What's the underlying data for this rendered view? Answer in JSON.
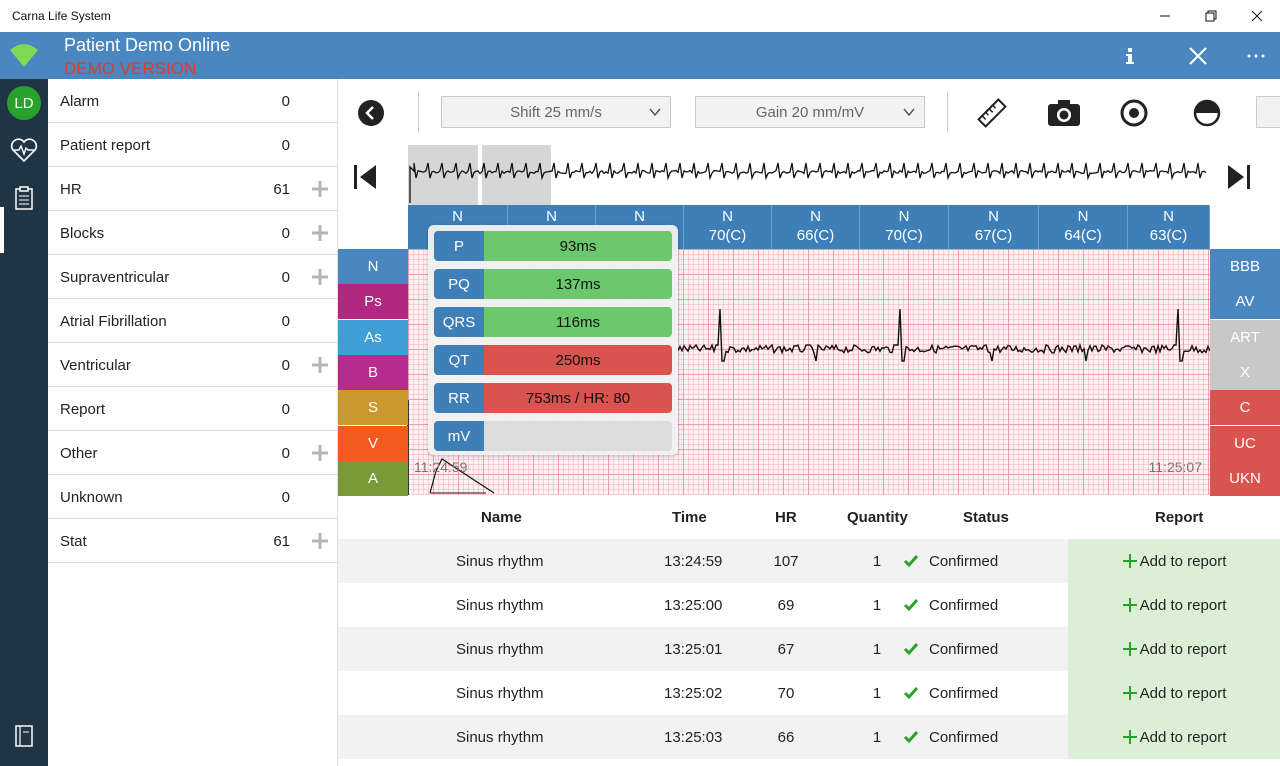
{
  "window": {
    "title": "Carna Life System"
  },
  "header": {
    "patient_name": "Patient Demo Online",
    "demo_label": "DEMO VERSION"
  },
  "rail": {
    "avatar_initials": "LD"
  },
  "categories": [
    {
      "label": "Alarm",
      "count": "0",
      "has_plus": false
    },
    {
      "label": "Patient report",
      "count": "0",
      "has_plus": false
    },
    {
      "label": "HR",
      "count": "61",
      "has_plus": true
    },
    {
      "label": "Blocks",
      "count": "0",
      "has_plus": true
    },
    {
      "label": "Supraventricular",
      "count": "0",
      "has_plus": true
    },
    {
      "label": "Atrial Fibrillation",
      "count": "0",
      "has_plus": false
    },
    {
      "label": "Ventricular",
      "count": "0",
      "has_plus": true
    },
    {
      "label": "Report",
      "count": "0",
      "has_plus": false
    },
    {
      "label": "Other",
      "count": "0",
      "has_plus": true
    },
    {
      "label": "Unknown",
      "count": "0",
      "has_plus": false
    },
    {
      "label": "Stat",
      "count": "61",
      "has_plus": true
    }
  ],
  "toolbar": {
    "shift_select": "Shift 25  mm/s",
    "gain_select": "Gain 20  mm/mV"
  },
  "beats": [
    {
      "type": "N",
      "value": ""
    },
    {
      "type": "N",
      "value": ""
    },
    {
      "type": "N",
      "value": ""
    },
    {
      "type": "N",
      "value": "70(C)"
    },
    {
      "type": "N",
      "value": "66(C)"
    },
    {
      "type": "N",
      "value": "70(C)"
    },
    {
      "type": "N",
      "value": "67(C)"
    },
    {
      "type": "N",
      "value": "64(C)"
    },
    {
      "type": "N",
      "value": "63(C)"
    }
  ],
  "left_tags": [
    {
      "label": "N",
      "color": "#4a86c0"
    },
    {
      "label": "Ps",
      "color": "#b0287f"
    },
    {
      "label": "As",
      "color": "#3d9fd6"
    },
    {
      "label": "B",
      "color": "#b72a8e"
    },
    {
      "label": "S",
      "color": "#c9992e"
    },
    {
      "label": "V",
      "color": "#f25a1e"
    },
    {
      "label": "A",
      "color": "#7a9a3a"
    }
  ],
  "right_tags": [
    {
      "label": "BBB",
      "color": "#4a86c0"
    },
    {
      "label": "AV",
      "color": "#4a86c0"
    },
    {
      "label": "ART",
      "color": "#c8c8c8"
    },
    {
      "label": "X",
      "color": "#c8c8c8"
    },
    {
      "label": "C",
      "color": "#d9534f"
    },
    {
      "label": "UC",
      "color": "#d9534f"
    },
    {
      "label": "UKN",
      "color": "#d9534f"
    }
  ],
  "ecg": {
    "start_time": "11:24:59",
    "end_time": "11:25:07"
  },
  "measurements": [
    {
      "key": "P",
      "value": "93ms",
      "color": "#6cc86c"
    },
    {
      "key": "PQ",
      "value": "137ms",
      "color": "#6cc86c"
    },
    {
      "key": "QRS",
      "value": "116ms",
      "color": "#6cc86c"
    },
    {
      "key": "QT",
      "value": "250ms",
      "color": "#d9534f"
    },
    {
      "key": "RR",
      "value": "753ms / HR: 80",
      "color": "#d9534f"
    },
    {
      "key": "mV",
      "value": "",
      "color": "#dcdcdc"
    }
  ],
  "table": {
    "headers": {
      "name": "Name",
      "time": "Time",
      "hr": "HR",
      "quantity": "Quantity",
      "status": "Status",
      "report": "Report"
    },
    "rows": [
      {
        "name": "Sinus rhythm",
        "time": "13:24:59",
        "hr": "107",
        "quantity": "1",
        "status": "Confirmed",
        "report": "Add to report"
      },
      {
        "name": "Sinus rhythm",
        "time": "13:25:00",
        "hr": "69",
        "quantity": "1",
        "status": "Confirmed",
        "report": "Add to report"
      },
      {
        "name": "Sinus rhythm",
        "time": "13:25:01",
        "hr": "67",
        "quantity": "1",
        "status": "Confirmed",
        "report": "Add to report"
      },
      {
        "name": "Sinus rhythm",
        "time": "13:25:02",
        "hr": "70",
        "quantity": "1",
        "status": "Confirmed",
        "report": "Add to report"
      },
      {
        "name": "Sinus rhythm",
        "time": "13:25:03",
        "hr": "66",
        "quantity": "1",
        "status": "Confirmed",
        "report": "Add to report"
      }
    ]
  },
  "icons": [
    "wifi-icon",
    "info-icon",
    "close-icon",
    "more-icon",
    "heart-monitor-icon",
    "clipboard-icon",
    "book-icon",
    "back-icon",
    "ruler-icon",
    "camera-icon",
    "record-icon",
    "half-circle-icon",
    "skip-start-icon",
    "skip-end-icon",
    "check-icon",
    "plus-icon"
  ]
}
